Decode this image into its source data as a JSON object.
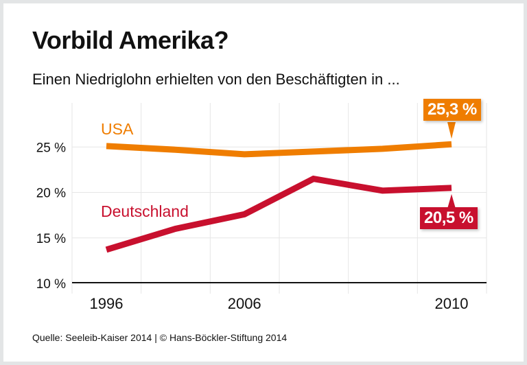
{
  "title": "Vorbild Amerika?",
  "subtitle": "Einen Niedriglohn erhielten von den Beschäftigten in ...",
  "source": "Quelle: Seeleib-Kaiser 2014 | © Hans-Böckler-Stiftung 2014",
  "chart_data": {
    "type": "line",
    "categories": [
      "1996",
      "",
      "2006",
      "",
      "",
      "2010"
    ],
    "x_tick_labels": [
      "1996",
      "2006",
      "2010"
    ],
    "y_tick_labels": [
      "10 %",
      "15 %",
      "20 %",
      "25 %"
    ],
    "y_ticks": [
      10,
      15,
      20,
      25
    ],
    "ylim": [
      10,
      27.5
    ],
    "grid": true,
    "series": [
      {
        "name": "USA",
        "color": "#ef7d00",
        "values": [
          25.1,
          24.7,
          24.2,
          24.5,
          24.8,
          25.3
        ],
        "end_label": "25,3 %"
      },
      {
        "name": "Deutschland",
        "color": "#c8102e",
        "values": [
          13.7,
          16.0,
          17.6,
          21.5,
          20.2,
          20.5
        ],
        "end_label": "20,5 %"
      }
    ]
  }
}
